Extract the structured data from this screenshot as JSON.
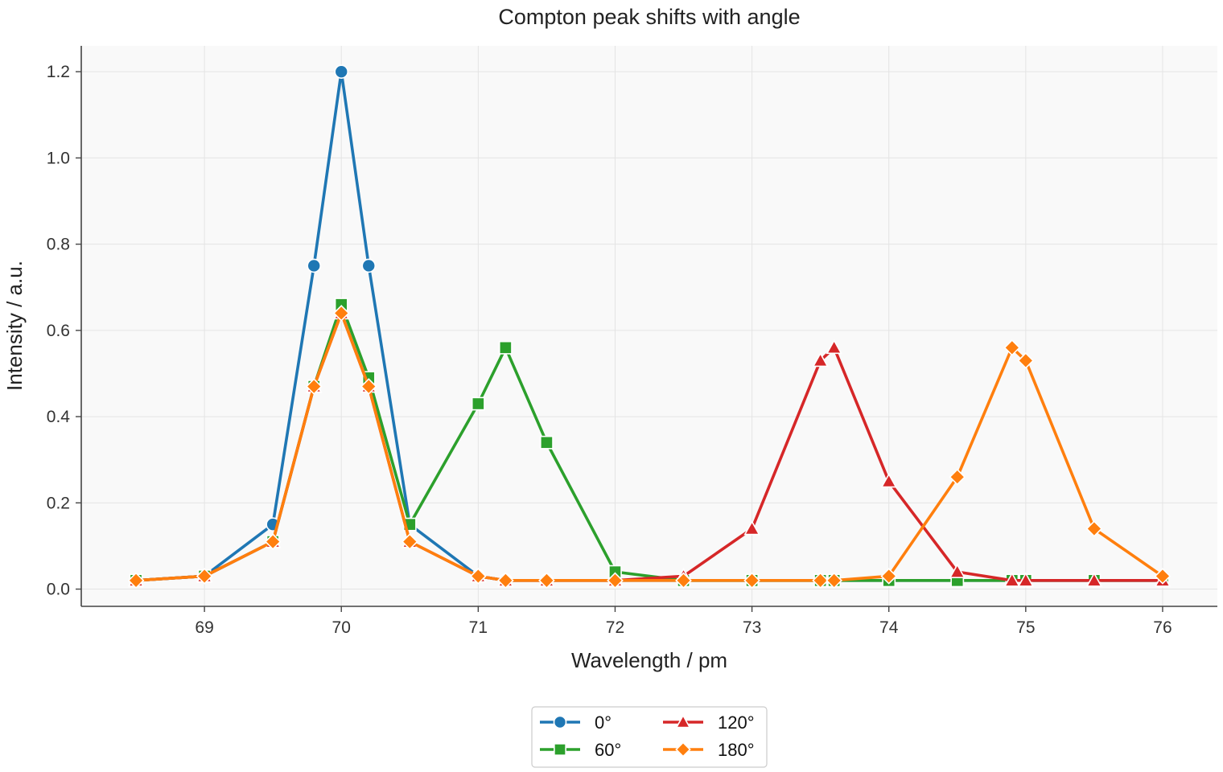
{
  "chart_data": {
    "type": "line",
    "title": "Compton peak shifts with angle",
    "xlabel": "Wavelength / pm",
    "ylabel": "Intensity / a.u.",
    "xlim": [
      68.1,
      76.4
    ],
    "ylim": [
      -0.04,
      1.26
    ],
    "xticks": [
      69,
      70,
      71,
      72,
      73,
      74,
      75,
      76
    ],
    "yticks": [
      0.0,
      0.2,
      0.4,
      0.6,
      0.8,
      1.0,
      1.2
    ],
    "ytick_labels": [
      "0.0",
      "0.2",
      "0.4",
      "0.6",
      "0.8",
      "1.0",
      "1.2"
    ],
    "grid": true,
    "legend_position": "bottom-center",
    "series": [
      {
        "name": "0°",
        "color": "#1f77b4",
        "marker": "circle",
        "points": [
          [
            68.5,
            0.02
          ],
          [
            69.0,
            0.03
          ],
          [
            69.5,
            0.15
          ],
          [
            69.8,
            0.75
          ],
          [
            70.0,
            1.2
          ],
          [
            70.2,
            0.75
          ],
          [
            70.5,
            0.15
          ],
          [
            71.0,
            0.03
          ],
          [
            71.2,
            0.02
          ],
          [
            71.5,
            0.02
          ],
          [
            72.0,
            0.02
          ],
          [
            72.5,
            0.02
          ],
          [
            73.0,
            0.02
          ],
          [
            73.5,
            0.02
          ],
          [
            73.6,
            0.02
          ],
          [
            74.0,
            0.02
          ],
          [
            74.5,
            0.02
          ],
          [
            74.9,
            0.02
          ],
          [
            75.0,
            0.02
          ],
          [
            75.5,
            0.02
          ],
          [
            76.0,
            0.02
          ]
        ]
      },
      {
        "name": "60°",
        "color": "#2ca02c",
        "marker": "square",
        "points": [
          [
            68.5,
            0.02
          ],
          [
            69.0,
            0.03
          ],
          [
            69.5,
            0.11
          ],
          [
            69.8,
            0.47
          ],
          [
            70.0,
            0.66
          ],
          [
            70.2,
            0.49
          ],
          [
            70.5,
            0.15
          ],
          [
            71.0,
            0.43
          ],
          [
            71.2,
            0.56
          ],
          [
            71.5,
            0.34
          ],
          [
            72.0,
            0.04
          ],
          [
            72.5,
            0.02
          ],
          [
            73.0,
            0.02
          ],
          [
            73.5,
            0.02
          ],
          [
            73.6,
            0.02
          ],
          [
            74.0,
            0.02
          ],
          [
            74.5,
            0.02
          ],
          [
            74.9,
            0.02
          ],
          [
            75.0,
            0.02
          ],
          [
            75.5,
            0.02
          ],
          [
            76.0,
            0.02
          ]
        ]
      },
      {
        "name": "120°",
        "color": "#d62728",
        "marker": "triangle",
        "points": [
          [
            68.5,
            0.02
          ],
          [
            69.0,
            0.03
          ],
          [
            69.5,
            0.11
          ],
          [
            69.8,
            0.47
          ],
          [
            70.0,
            0.64
          ],
          [
            70.2,
            0.47
          ],
          [
            70.5,
            0.11
          ],
          [
            71.0,
            0.03
          ],
          [
            71.2,
            0.02
          ],
          [
            71.5,
            0.02
          ],
          [
            72.0,
            0.02
          ],
          [
            72.5,
            0.03
          ],
          [
            73.0,
            0.14
          ],
          [
            73.5,
            0.53
          ],
          [
            73.6,
            0.56
          ],
          [
            74.0,
            0.25
          ],
          [
            74.5,
            0.04
          ],
          [
            74.9,
            0.02
          ],
          [
            75.0,
            0.02
          ],
          [
            75.5,
            0.02
          ],
          [
            76.0,
            0.02
          ]
        ]
      },
      {
        "name": "180°",
        "color": "#ff7f0e",
        "marker": "diamond",
        "points": [
          [
            68.5,
            0.02
          ],
          [
            69.0,
            0.03
          ],
          [
            69.5,
            0.11
          ],
          [
            69.8,
            0.47
          ],
          [
            70.0,
            0.64
          ],
          [
            70.2,
            0.47
          ],
          [
            70.5,
            0.11
          ],
          [
            71.0,
            0.03
          ],
          [
            71.2,
            0.02
          ],
          [
            71.5,
            0.02
          ],
          [
            72.0,
            0.02
          ],
          [
            72.5,
            0.02
          ],
          [
            73.0,
            0.02
          ],
          [
            73.5,
            0.02
          ],
          [
            73.6,
            0.02
          ],
          [
            74.0,
            0.03
          ],
          [
            74.5,
            0.26
          ],
          [
            74.9,
            0.56
          ],
          [
            75.0,
            0.53
          ],
          [
            75.5,
            0.14
          ],
          [
            76.0,
            0.03
          ]
        ]
      }
    ]
  }
}
